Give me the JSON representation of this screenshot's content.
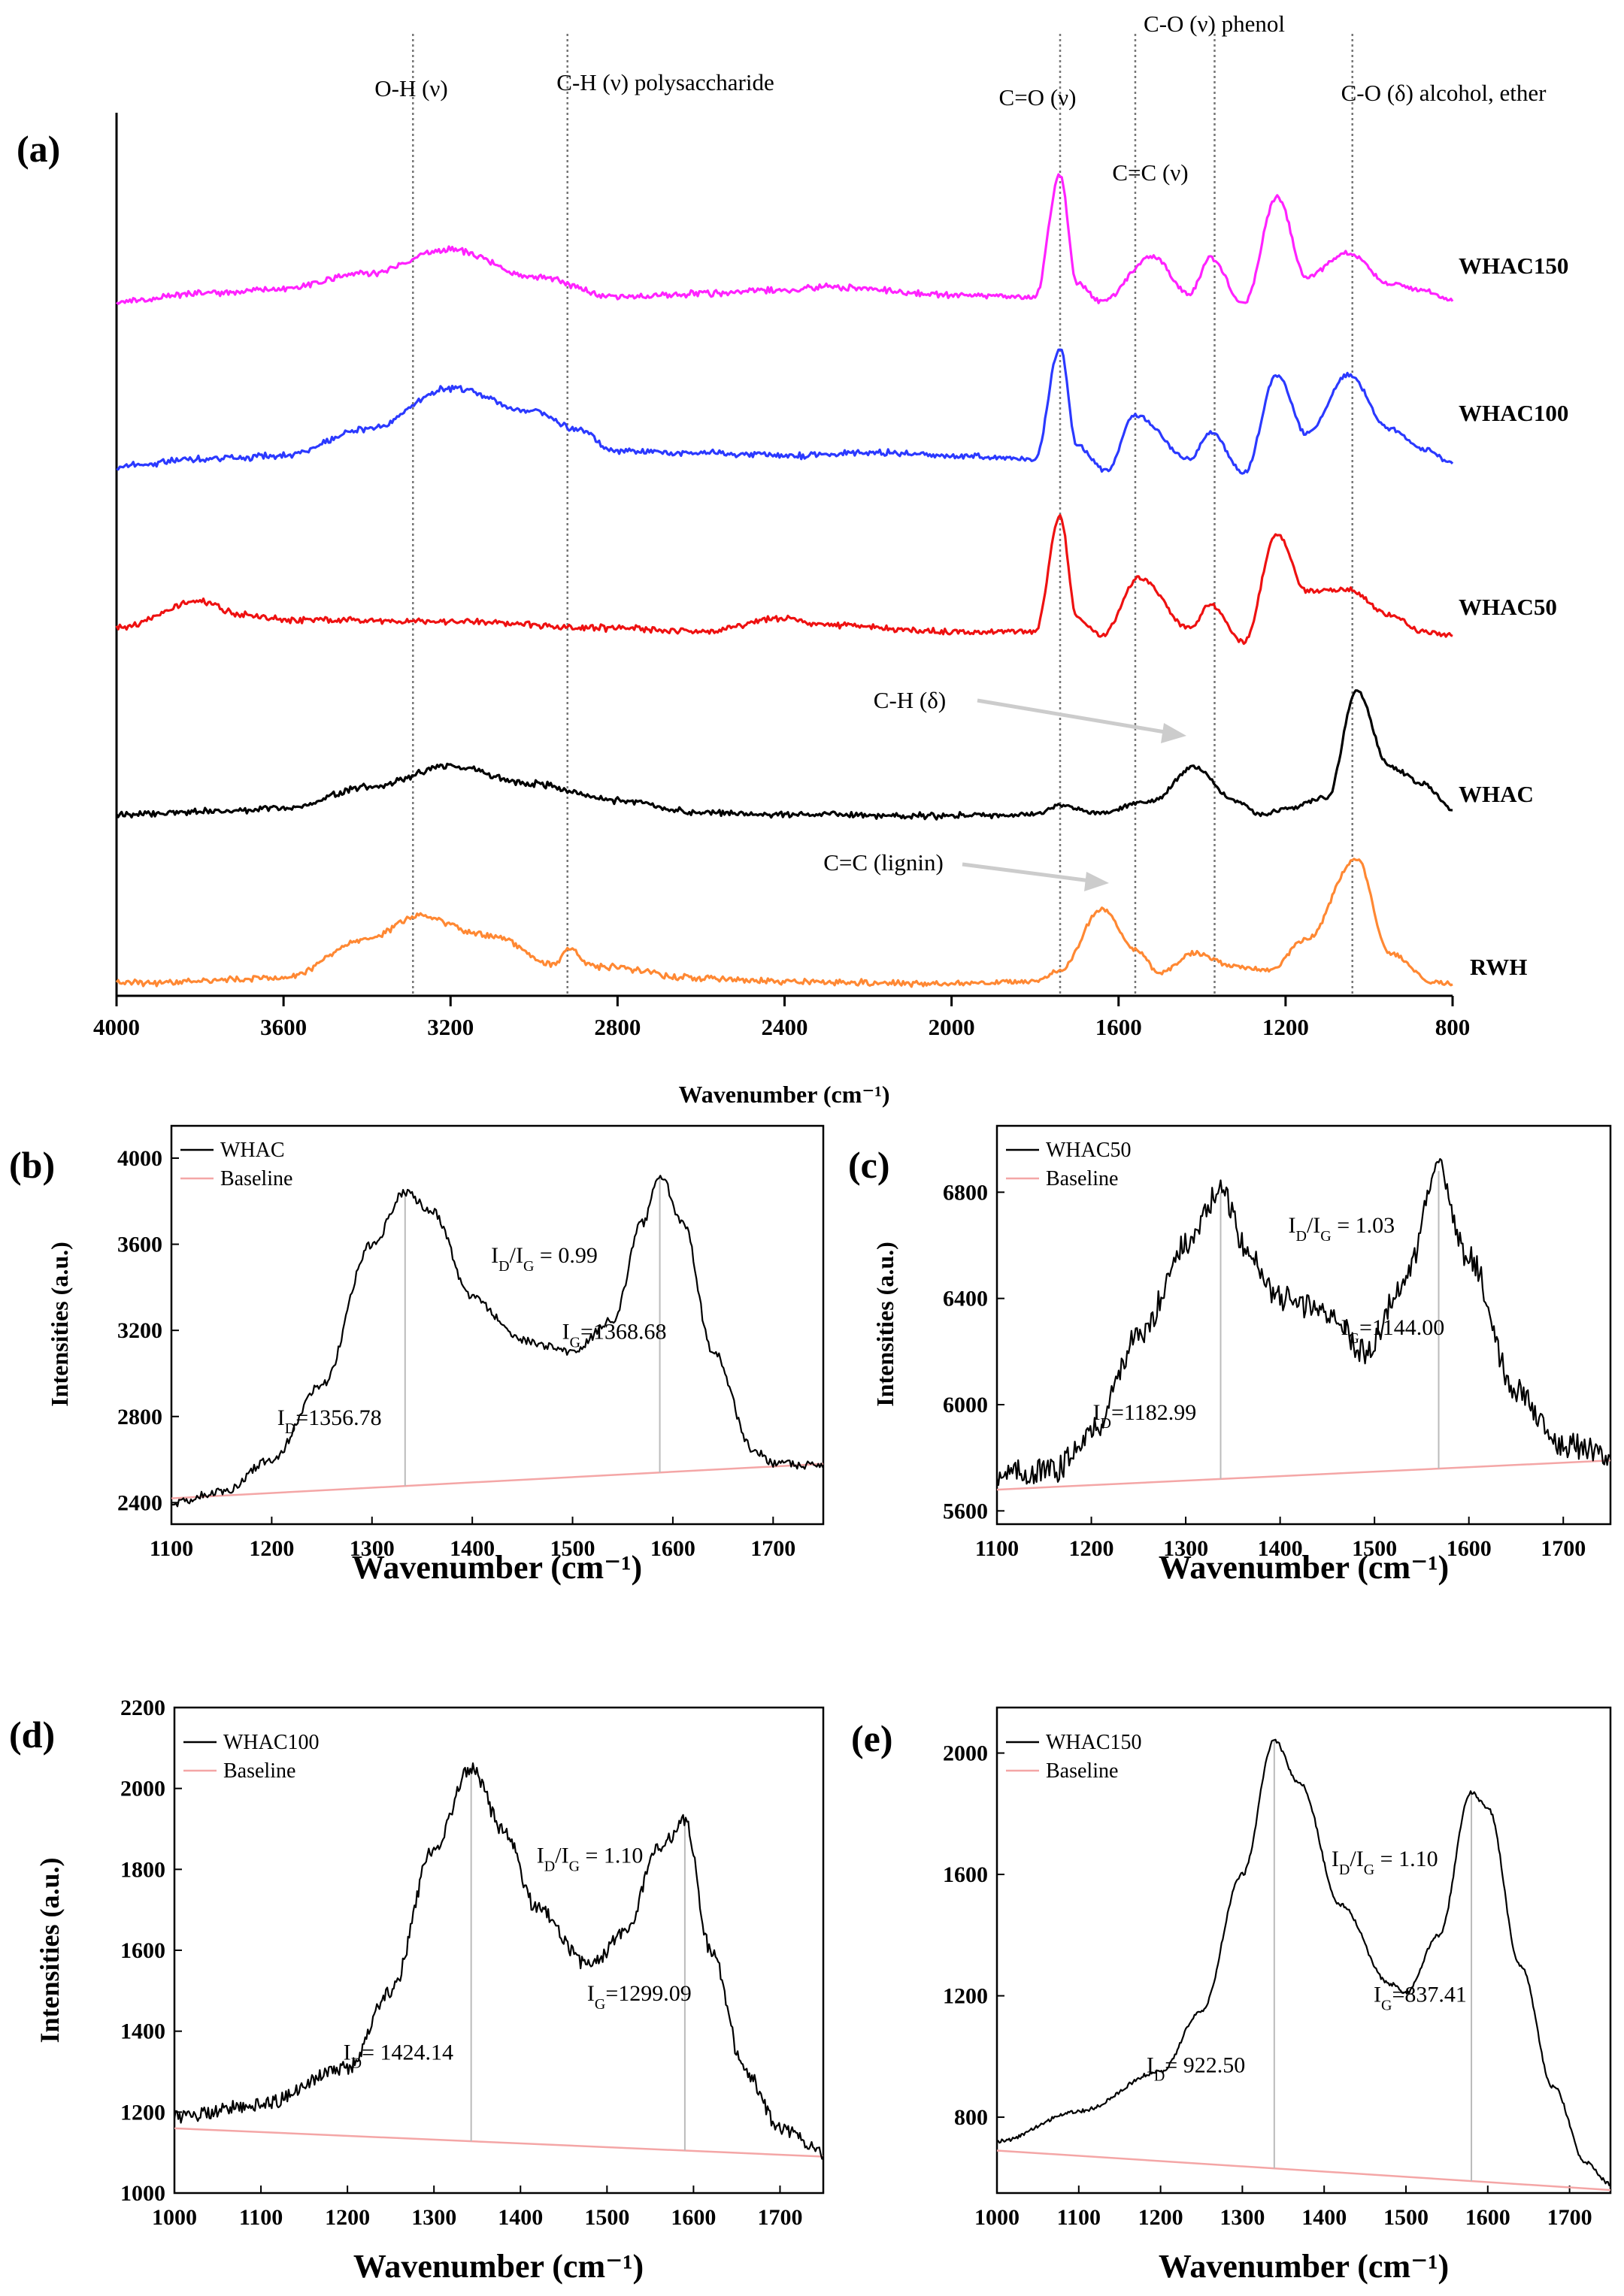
{
  "chart_data": [
    {
      "panel": "(a)",
      "type": "line",
      "xlabel": "Wavenumber (cm⁻¹)",
      "xlim": [
        4000,
        800
      ],
      "x_ticks": [
        "4000",
        "3600",
        "3200",
        "2800",
        "2400",
        "2000",
        "1600",
        "1200",
        "800"
      ],
      "x_ticks_num": [
        4000,
        3600,
        3200,
        2800,
        2400,
        2000,
        1600,
        1200,
        800
      ],
      "ylabel": "",
      "y_ticks_shown": false,
      "series": [
        {
          "name": "WHAC150",
          "color": "#ff22ff",
          "offset": 4,
          "values": [
            [
              4000,
              0.05
            ],
            [
              3800,
              0.1
            ],
            [
              3600,
              0.13
            ],
            [
              3400,
              0.22
            ],
            [
              3200,
              0.36
            ],
            [
              3000,
              0.2
            ],
            [
              2800,
              0.08
            ],
            [
              2600,
              0.1
            ],
            [
              2400,
              0.12
            ],
            [
              2300,
              0.14
            ],
            [
              2000,
              0.09
            ],
            [
              1800,
              0.08
            ],
            [
              1740,
              0.8
            ],
            [
              1700,
              0.16
            ],
            [
              1640,
              0.05
            ],
            [
              1520,
              0.32
            ],
            [
              1430,
              0.1
            ],
            [
              1380,
              0.31
            ],
            [
              1300,
              0.04
            ],
            [
              1220,
              0.67
            ],
            [
              1150,
              0.2
            ],
            [
              1050,
              0.34
            ],
            [
              950,
              0.16
            ],
            [
              870,
              0.12
            ],
            [
              800,
              0.06
            ]
          ]
        },
        {
          "name": "WHAC100",
          "color": "#2b39ff",
          "offset": 3,
          "values": [
            [
              4000,
              0.08
            ],
            [
              3800,
              0.12
            ],
            [
              3600,
              0.14
            ],
            [
              3400,
              0.3
            ],
            [
              3200,
              0.54
            ],
            [
              3000,
              0.4
            ],
            [
              2900,
              0.3
            ],
            [
              2800,
              0.17
            ],
            [
              2600,
              0.16
            ],
            [
              2400,
              0.14
            ],
            [
              2200,
              0.16
            ],
            [
              2000,
              0.14
            ],
            [
              1800,
              0.12
            ],
            [
              1740,
              0.78
            ],
            [
              1700,
              0.2
            ],
            [
              1630,
              0.05
            ],
            [
              1560,
              0.38
            ],
            [
              1430,
              0.12
            ],
            [
              1380,
              0.28
            ],
            [
              1300,
              0.04
            ],
            [
              1220,
              0.62
            ],
            [
              1150,
              0.27
            ],
            [
              1050,
              0.62
            ],
            [
              950,
              0.3
            ],
            [
              870,
              0.18
            ],
            [
              800,
              0.1
            ]
          ]
        },
        {
          "name": "WHAC50",
          "color": "#ee1111",
          "offset": 2,
          "values": [
            [
              4000,
              0.12
            ],
            [
              3800,
              0.28
            ],
            [
              3700,
              0.2
            ],
            [
              3600,
              0.17
            ],
            [
              3200,
              0.16
            ],
            [
              2800,
              0.12
            ],
            [
              2600,
              0.1
            ],
            [
              2400,
              0.18
            ],
            [
              2300,
              0.14
            ],
            [
              2000,
              0.1
            ],
            [
              1800,
              0.1
            ],
            [
              1740,
              0.78
            ],
            [
              1700,
              0.18
            ],
            [
              1640,
              0.08
            ],
            [
              1550,
              0.42
            ],
            [
              1430,
              0.12
            ],
            [
              1380,
              0.26
            ],
            [
              1300,
              0.04
            ],
            [
              1220,
              0.68
            ],
            [
              1150,
              0.34
            ],
            [
              1050,
              0.35
            ],
            [
              950,
              0.2
            ],
            [
              870,
              0.1
            ],
            [
              800,
              0.08
            ]
          ]
        },
        {
          "name": "WHAC",
          "color": "#000000",
          "offset": 1,
          "values": [
            [
              4000,
              0.02
            ],
            [
              3600,
              0.05
            ],
            [
              3400,
              0.18
            ],
            [
              3200,
              0.3
            ],
            [
              3000,
              0.2
            ],
            [
              2800,
              0.1
            ],
            [
              2600,
              0.03
            ],
            [
              2400,
              0.02
            ],
            [
              2000,
              0.01
            ],
            [
              1800,
              0.02
            ],
            [
              1740,
              0.07
            ],
            [
              1650,
              0.03
            ],
            [
              1520,
              0.1
            ],
            [
              1420,
              0.3
            ],
            [
              1320,
              0.1
            ],
            [
              1260,
              0.02
            ],
            [
              1200,
              0.05
            ],
            [
              1100,
              0.12
            ],
            [
              1030,
              0.75
            ],
            [
              950,
              0.3
            ],
            [
              870,
              0.2
            ],
            [
              800,
              0.05
            ]
          ]
        },
        {
          "name": "RWH",
          "color": "#ff8833",
          "offset": 0,
          "values": [
            [
              4000,
              0.02
            ],
            [
              3600,
              0.05
            ],
            [
              3400,
              0.28
            ],
            [
              3280,
              0.42
            ],
            [
              3100,
              0.3
            ],
            [
              2950,
              0.13
            ],
            [
              2920,
              0.22
            ],
            [
              2850,
              0.12
            ],
            [
              2600,
              0.05
            ],
            [
              2400,
              0.03
            ],
            [
              2000,
              0.02
            ],
            [
              1800,
              0.03
            ],
            [
              1740,
              0.1
            ],
            [
              1640,
              0.46
            ],
            [
              1560,
              0.22
            ],
            [
              1500,
              0.08
            ],
            [
              1420,
              0.2
            ],
            [
              1320,
              0.12
            ],
            [
              1240,
              0.1
            ],
            [
              1150,
              0.28
            ],
            [
              1030,
              0.76
            ],
            [
              950,
              0.2
            ],
            [
              850,
              0.03
            ],
            [
              800,
              0.02
            ]
          ]
        }
      ],
      "vlines": [
        3290,
        2920,
        1740,
        1560,
        1370,
        1040
      ],
      "annotations": [
        {
          "text": "O-H (ν)",
          "x": 3290
        },
        {
          "text": "C-H (ν) polysaccharide",
          "x": 2780
        },
        {
          "text": "C=O (ν)",
          "x": 1745
        },
        {
          "text": "C=C (ν)",
          "x": 1600
        },
        {
          "text": "C-O (ν) phenol",
          "x": 1370
        },
        {
          "text": "C-O (δ) alcohol, ether",
          "x": 1050
        },
        {
          "text": "C-H (δ)",
          "x": 1700
        },
        {
          "text": "C=C (lignin)",
          "x": 1720
        }
      ]
    },
    {
      "panel": "(b)",
      "type": "line",
      "xlabel": "Wavenumber (cm⁻¹)",
      "ylabel": "Intensities (a.u.)",
      "xlim": [
        1100,
        1750
      ],
      "ylim": [
        2300,
        4150
      ],
      "x_ticks": [
        "1100",
        "1200",
        "1300",
        "1400",
        "1500",
        "1600",
        "1700"
      ],
      "x_ticks_num": [
        1100,
        1200,
        1300,
        1400,
        1500,
        1600,
        1700
      ],
      "y_ticks": [
        "2400",
        "2800",
        "3200",
        "3600",
        "4000"
      ],
      "y_ticks_num": [
        2400,
        2800,
        3200,
        3600,
        4000
      ],
      "legend": [
        "WHAC",
        "Baseline"
      ],
      "ratio_text": "I_D/I_G = 0.99",
      "peak_d": {
        "x": 1333,
        "label": "I_D=1356.78"
      },
      "peak_g": {
        "x": 1587,
        "label": "I_G=1368.68"
      },
      "baseline": [
        [
          1100,
          2420
        ],
        [
          1750,
          2580
        ]
      ],
      "noise": 25,
      "values": [
        [
          1100,
          2400
        ],
        [
          1150,
          2450
        ],
        [
          1200,
          2600
        ],
        [
          1250,
          2950
        ],
        [
          1300,
          3600
        ],
        [
          1333,
          3840
        ],
        [
          1360,
          3750
        ],
        [
          1400,
          3350
        ],
        [
          1450,
          3150
        ],
        [
          1500,
          3100
        ],
        [
          1540,
          3250
        ],
        [
          1570,
          3700
        ],
        [
          1587,
          3920
        ],
        [
          1610,
          3700
        ],
        [
          1640,
          3100
        ],
        [
          1680,
          2650
        ],
        [
          1700,
          2580
        ],
        [
          1750,
          2570
        ]
      ]
    },
    {
      "panel": "(c)",
      "type": "line",
      "xlabel": "Wavenumber (cm⁻¹)",
      "ylabel": "Intensities (a.u.)",
      "xlim": [
        1100,
        1750
      ],
      "ylim": [
        5550,
        7050
      ],
      "x_ticks": [
        "1100",
        "1200",
        "1300",
        "1400",
        "1500",
        "1600",
        "1700"
      ],
      "x_ticks_num": [
        1100,
        1200,
        1300,
        1400,
        1500,
        1600,
        1700
      ],
      "y_ticks": [
        "5600",
        "6000",
        "6400",
        "6800"
      ],
      "y_ticks_num": [
        5600,
        6000,
        6400,
        6800
      ],
      "legend": [
        "WHAC50",
        "Baseline"
      ],
      "ratio_text": "I_D/I_G = 1.03",
      "peak_d": {
        "x": 1337,
        "label": "I_D=1182.99"
      },
      "peak_g": {
        "x": 1568,
        "label": "I_G=1144.00"
      },
      "baseline": [
        [
          1100,
          5680
        ],
        [
          1750,
          5790
        ]
      ],
      "noise": 60,
      "values": [
        [
          1100,
          5740
        ],
        [
          1160,
          5750
        ],
        [
          1200,
          5900
        ],
        [
          1250,
          6250
        ],
        [
          1300,
          6600
        ],
        [
          1337,
          6800
        ],
        [
          1370,
          6550
        ],
        [
          1400,
          6400
        ],
        [
          1450,
          6350
        ],
        [
          1490,
          6200
        ],
        [
          1530,
          6450
        ],
        [
          1568,
          6880
        ],
        [
          1600,
          6550
        ],
        [
          1650,
          6050
        ],
        [
          1700,
          5850
        ],
        [
          1750,
          5820
        ]
      ]
    },
    {
      "panel": "(d)",
      "type": "line",
      "xlabel": "Wavenumber (cm⁻¹)",
      "ylabel": "Intensities (a.u.)",
      "xlim": [
        1000,
        1750
      ],
      "ylim": [
        1000,
        2200
      ],
      "x_ticks": [
        "1000",
        "1100",
        "1200",
        "1300",
        "1400",
        "1500",
        "1600",
        "1700"
      ],
      "x_ticks_num": [
        1000,
        1100,
        1200,
        1300,
        1400,
        1500,
        1600,
        1700
      ],
      "y_ticks": [
        "1000",
        "1200",
        "1400",
        "1600",
        "1800",
        "2000",
        "2200"
      ],
      "y_ticks_num": [
        1000,
        1200,
        1400,
        1600,
        1800,
        2000,
        2200
      ],
      "legend": [
        "WHAC100",
        "Baseline"
      ],
      "ratio_text": "I_D/I_G = 1.10",
      "peak_d": {
        "x": 1343,
        "label": "I_D= 1424.14"
      },
      "peak_g": {
        "x": 1590,
        "label": "I_G=1299.09"
      },
      "baseline": [
        [
          1000,
          1160
        ],
        [
          1750,
          1090
        ]
      ],
      "noise": 22,
      "values": [
        [
          1000,
          1190
        ],
        [
          1100,
          1220
        ],
        [
          1200,
          1310
        ],
        [
          1250,
          1500
        ],
        [
          1300,
          1850
        ],
        [
          1343,
          2050
        ],
        [
          1380,
          1900
        ],
        [
          1420,
          1700
        ],
        [
          1480,
          1560
        ],
        [
          1520,
          1640
        ],
        [
          1560,
          1850
        ],
        [
          1590,
          1920
        ],
        [
          1620,
          1600
        ],
        [
          1660,
          1300
        ],
        [
          1700,
          1160
        ],
        [
          1750,
          1100
        ]
      ]
    },
    {
      "panel": "(e)",
      "type": "line",
      "xlabel": "Wavenumber (cm⁻¹)",
      "ylabel": "",
      "xlim": [
        1000,
        1750
      ],
      "ylim": [
        550,
        2150
      ],
      "x_ticks": [
        "1000",
        "1100",
        "1200",
        "1300",
        "1400",
        "1500",
        "1600",
        "1700"
      ],
      "x_ticks_num": [
        1000,
        1100,
        1200,
        1300,
        1400,
        1500,
        1600,
        1700
      ],
      "y_ticks": [
        "800",
        "1200",
        "1600",
        "2000"
      ],
      "y_ticks_num": [
        800,
        1200,
        1600,
        2000
      ],
      "legend": [
        "WHAC150",
        "Baseline"
      ],
      "ratio_text": "I_D/I_G = 1.10",
      "peak_d": {
        "x": 1339,
        "label": "I_D= 922.50"
      },
      "peak_g": {
        "x": 1580,
        "label": "I_G=837.41"
      },
      "baseline": [
        [
          1000,
          690
        ],
        [
          1750,
          560
        ]
      ],
      "noise": 8,
      "values": [
        [
          1000,
          720
        ],
        [
          1100,
          820
        ],
        [
          1200,
          950
        ],
        [
          1250,
          1150
        ],
        [
          1300,
          1600
        ],
        [
          1339,
          2040
        ],
        [
          1370,
          1900
        ],
        [
          1420,
          1500
        ],
        [
          1480,
          1240
        ],
        [
          1500,
          1210
        ],
        [
          1540,
          1400
        ],
        [
          1580,
          1870
        ],
        [
          1600,
          1820
        ],
        [
          1640,
          1300
        ],
        [
          1680,
          900
        ],
        [
          1720,
          650
        ],
        [
          1750,
          580
        ]
      ]
    }
  ]
}
